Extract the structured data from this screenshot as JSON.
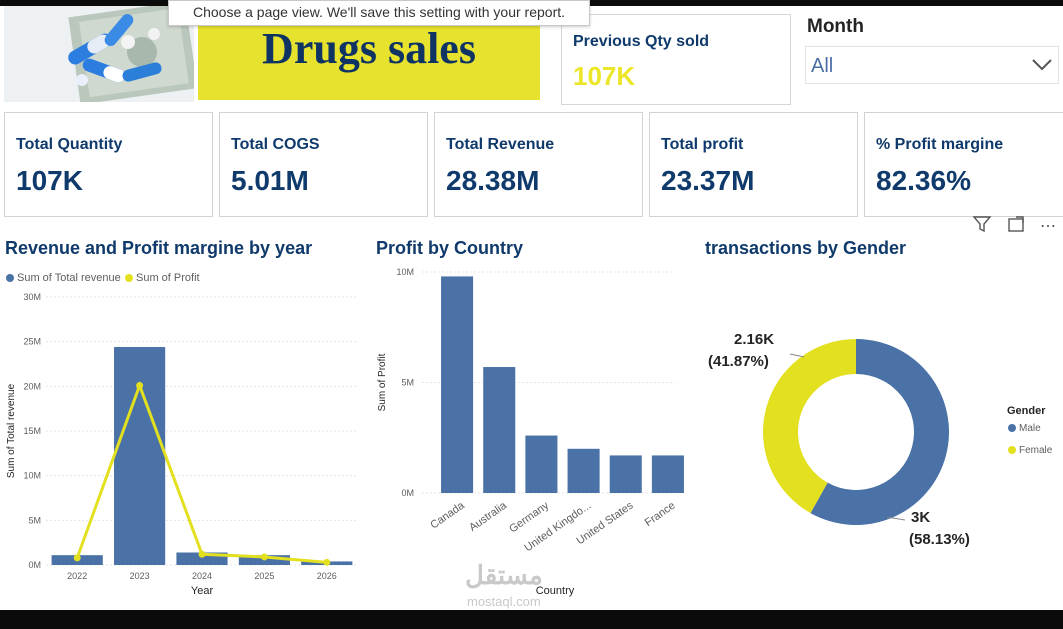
{
  "tooltip": {
    "text": "Choose a page view. We'll save this setting with your report."
  },
  "header": {
    "title": "Drugs sales"
  },
  "previous_qty": {
    "label": "Previous Qty sold",
    "value": "107K"
  },
  "month_filter": {
    "label": "Month",
    "value": "All"
  },
  "kpis": [
    {
      "label": "Total Quantity",
      "value": "107K"
    },
    {
      "label": "Total COGS",
      "value": "5.01M"
    },
    {
      "label": "Total Revenue",
      "value": "28.38M"
    },
    {
      "label": "Total profit",
      "value": "23.37M"
    },
    {
      "label": "% Profit margine",
      "value": "82.36%"
    }
  ],
  "colors": {
    "accent": "#4a72a6",
    "yellow": "#e3e01f",
    "dark_blue": "#0f3a6b",
    "title_bg": "#e6e22e"
  },
  "icons": [
    "filter-icon",
    "focus-mode-icon",
    "more-options-icon",
    "chevron-down-icon"
  ],
  "watermark": {
    "text": "مستقل",
    "sub": "mostaql.com"
  },
  "chart_data": [
    {
      "type": "bar",
      "title": "Revenue and Profit margine by year",
      "legend": [
        "Sum of Total revenue",
        "Sum of Profit"
      ],
      "categories": [
        "2022",
        "2023",
        "2024",
        "2025",
        "2026"
      ],
      "series": [
        {
          "name": "Sum of Total revenue",
          "type": "bar",
          "values": [
            1.1,
            24.4,
            1.4,
            1.1,
            0.4
          ]
        },
        {
          "name": "Sum of Profit",
          "type": "line",
          "values": [
            0.8,
            20.1,
            1.2,
            0.9,
            0.3
          ]
        }
      ],
      "xlabel": "Year",
      "ylabel": "Sum of Total revenue",
      "ylim": [
        0,
        30
      ],
      "yticks": [
        "0M",
        "5M",
        "10M",
        "15M",
        "20M",
        "25M",
        "30M"
      ]
    },
    {
      "type": "bar",
      "title": "Profit by Country",
      "categories": [
        "Canada",
        "Australia",
        "Germany",
        "United Kingdo...",
        "United States",
        "France"
      ],
      "values": [
        9.8,
        5.7,
        2.6,
        2.0,
        1.7,
        1.7
      ],
      "xlabel": "Country",
      "ylabel": "Sum of Profit",
      "ylim": [
        0,
        10
      ],
      "yticks": [
        "0M",
        "5M",
        "10M"
      ]
    },
    {
      "type": "pie",
      "title": "transactions by Gender",
      "legend_title": "Gender",
      "slices": [
        {
          "label": "Male",
          "value": 3000,
          "display": "3K",
          "percent": "(58.13%)"
        },
        {
          "label": "Female",
          "value": 2160,
          "display": "2.16K",
          "percent": "(41.87%)"
        }
      ]
    }
  ]
}
